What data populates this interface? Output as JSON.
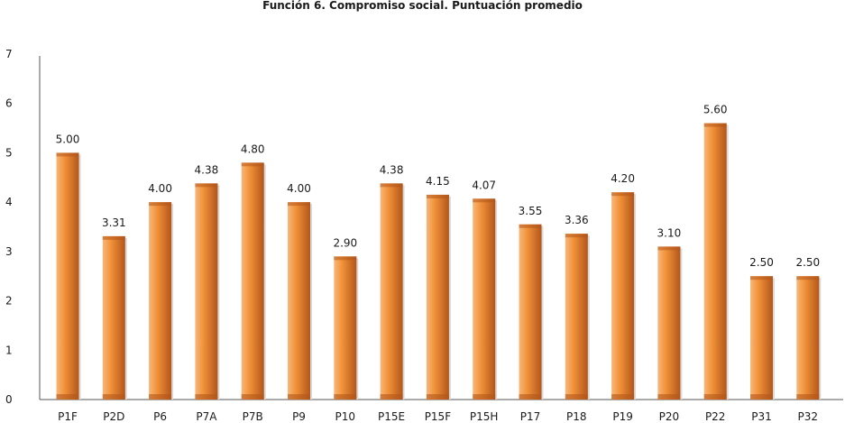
{
  "chart_data": {
    "type": "bar",
    "title": "Función 6. Compromiso social. Puntuación promedio",
    "xlabel": "",
    "ylabel": "",
    "categories": [
      "P1F",
      "P2D",
      "P6",
      "P7A",
      "P7B",
      "P9",
      "P10",
      "P15E",
      "P15F",
      "P15H",
      "P17",
      "P18",
      "P19",
      "P20",
      "P22",
      "P31",
      "P32"
    ],
    "values": [
      5.0,
      3.31,
      4.0,
      4.38,
      4.8,
      4.0,
      2.9,
      4.38,
      4.15,
      4.07,
      3.55,
      3.36,
      4.2,
      3.1,
      5.6,
      2.5,
      2.5
    ],
    "value_labels": [
      "5.00",
      "3.31",
      "4.00",
      "4.38",
      "4.80",
      "4.00",
      "2.90",
      "4.38",
      "4.15",
      "4.07",
      "3.55",
      "3.36",
      "4.20",
      "3.10",
      "5.60",
      "2.50",
      "2.50"
    ],
    "ylim": [
      0,
      7
    ],
    "yticks": [
      "0",
      "1",
      "2",
      "3",
      "4",
      "5",
      "6",
      "7"
    ],
    "grid": false,
    "bar_color": "#f2933a",
    "bar_color_light": "#f7b77a",
    "bar_color_dark": "#b3561a"
  }
}
